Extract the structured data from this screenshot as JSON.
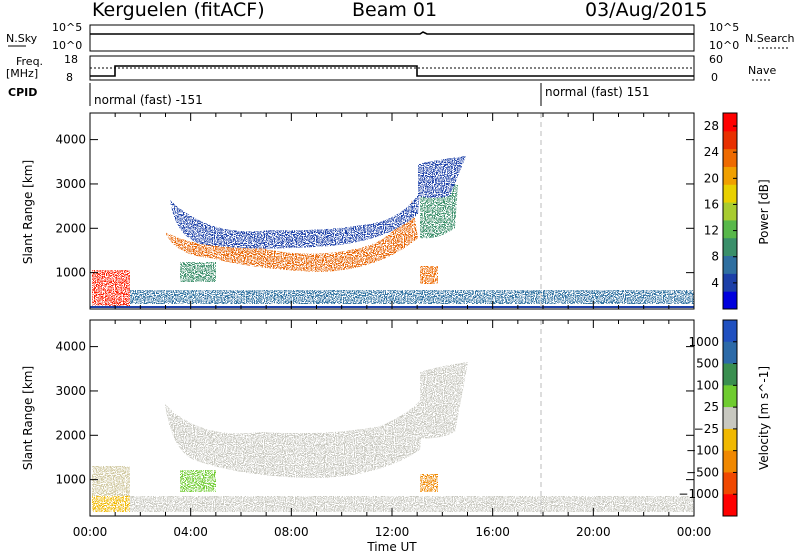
{
  "header": {
    "station": "Kerguelen (fitACF)",
    "beam": "Beam 01",
    "date": "03/Aug/2015"
  },
  "status_panel": {
    "nsky_label": "N.Sky",
    "nsearch_label": "N.Search",
    "freq_label_line1": "Freq.",
    "freq_label_line2": "[MHz]",
    "nave_label": "Nave",
    "cpid_label": "CPID",
    "nsky_ticks": [
      "10^5",
      "10^0"
    ],
    "nsearch_ticks": [
      "10^5",
      "10^0"
    ],
    "freq_ticks": [
      "18",
      "8"
    ],
    "nave_ticks": [
      "60",
      "0"
    ],
    "cpid_segments": [
      {
        "label": "normal (fast) -151",
        "start_hour": 0
      },
      {
        "label": "normal (fast) 151",
        "start_hour": 18
      }
    ]
  },
  "chart_data": [
    {
      "type": "heatmap",
      "title": "",
      "xlabel": "",
      "ylabel": "Slant Range [km]",
      "xlim": [
        0,
        24
      ],
      "ylim": [
        180,
        4600
      ],
      "y_ticks": [
        "1000",
        "2000",
        "3000",
        "4000"
      ],
      "colorbar_label": "Power [dB]",
      "colorbar_ticks": [
        "4",
        "8",
        "12",
        "16",
        "20",
        "24",
        "28"
      ],
      "colorbar_colors": [
        "#0000dd",
        "#1c3fa8",
        "#2f6fa0",
        "#3a8f6a",
        "#58b84a",
        "#a8cc30",
        "#e8d000",
        "#f0a000",
        "#ee6a00",
        "#e83000",
        "#ff0000"
      ],
      "colorbar_range": [
        0,
        30
      ]
    },
    {
      "type": "heatmap",
      "title": "",
      "xlabel": "Time UT",
      "ylabel": "Slant Range [km]",
      "xlim": [
        0,
        24
      ],
      "ylim": [
        180,
        4600
      ],
      "x_ticks": [
        "00:00",
        "04:00",
        "08:00",
        "12:00",
        "16:00",
        "20:00",
        "00:00"
      ],
      "y_ticks": [
        "1000",
        "2000",
        "3000",
        "4000"
      ],
      "colorbar_label": "Velocity [m s^-1]",
      "colorbar_ticks": [
        "1000",
        "500",
        "100",
        "25",
        "−25",
        "−100",
        "−500",
        "−1000"
      ],
      "colorbar_colors": [
        "#2050c0",
        "#2c6aa8",
        "#3a8f50",
        "#6fcc30",
        "#c8c8c0",
        "#f0b800",
        "#f08800",
        "#f04800",
        "#ff0000"
      ]
    }
  ]
}
